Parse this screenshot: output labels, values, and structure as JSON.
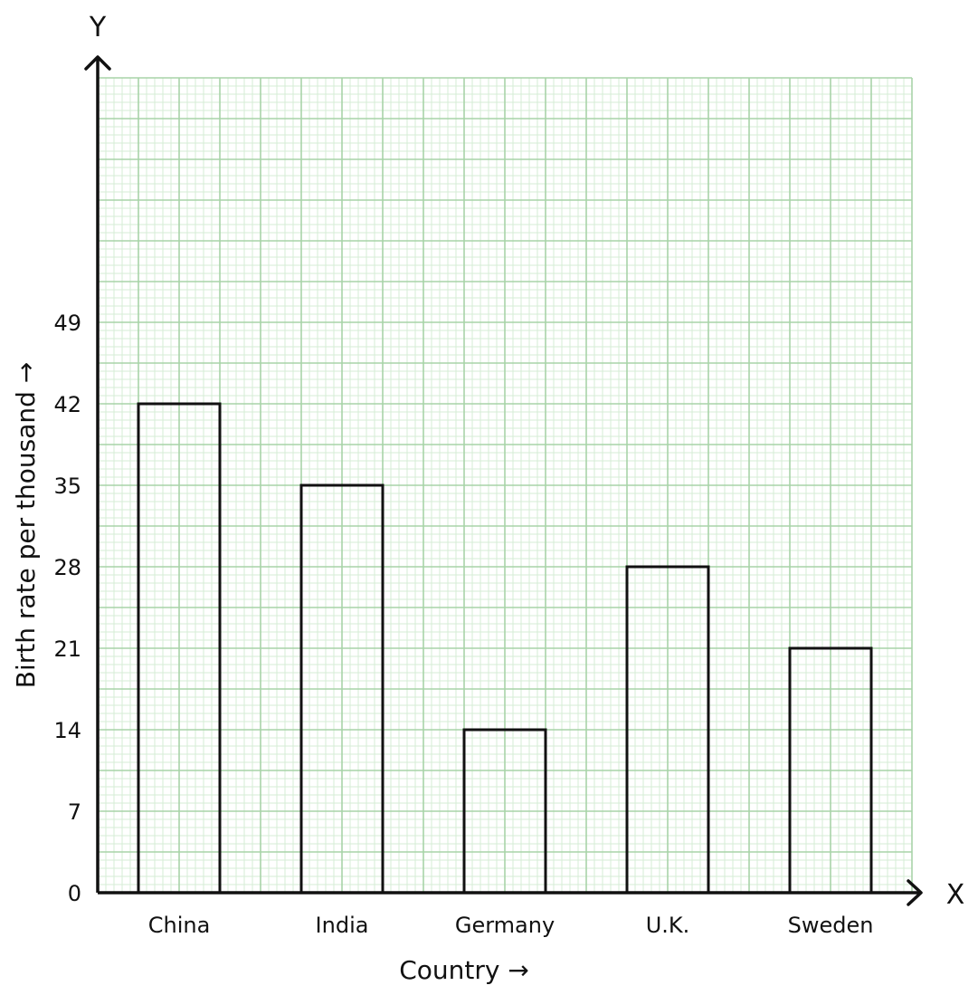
{
  "chart_data": {
    "type": "bar",
    "title": "",
    "xlabel": "Country →",
    "ylabel": "Birth rate per thousand →",
    "x_axis_letter": "X",
    "y_axis_letter": "Y",
    "categories": [
      "China",
      "India",
      "Germany",
      "U.K.",
      "Sweden"
    ],
    "values": [
      42,
      35,
      14,
      28,
      21
    ],
    "yticks": [
      "0",
      "7",
      "14",
      "21",
      "28",
      "35",
      "42",
      "49"
    ],
    "ylim": [
      0,
      70
    ],
    "grid": true,
    "colors": {
      "grid_major": "#a8d4a8",
      "grid_minor": "#d6ecd6",
      "bar_fill": "none",
      "bar_stroke": "#111111",
      "axis": "#111111"
    }
  }
}
